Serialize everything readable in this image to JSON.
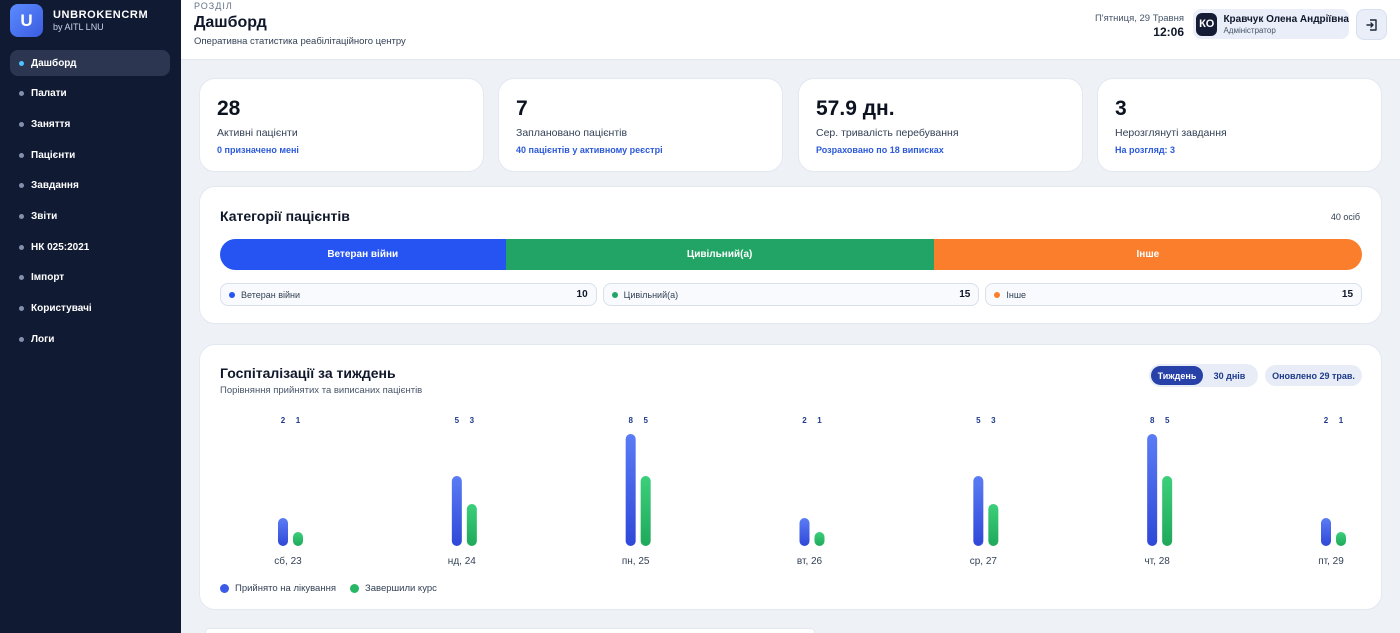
{
  "brand": {
    "letter": "U",
    "name": "UNBROKENCRM",
    "sub": "by AITL LNU"
  },
  "nav": [
    {
      "label": "Дашборд",
      "active": true
    },
    {
      "label": "Палати"
    },
    {
      "label": "Заняття"
    },
    {
      "label": "Пацієнти"
    },
    {
      "label": "Завдання"
    },
    {
      "label": "Звіти"
    },
    {
      "label": "НК 025:2021"
    },
    {
      "label": "Імпорт"
    },
    {
      "label": "Користувачі"
    },
    {
      "label": "Логи"
    }
  ],
  "header": {
    "section_label": "РОЗДІЛ",
    "title": "Дашборд",
    "subtitle": "Оперативна статистика реабілітаційного центру",
    "date": "П'ятниця, 29 Травня",
    "time": "12:06",
    "user": {
      "initials": "КО",
      "name": "Кравчук Олена Андріївна",
      "role": "Адміністратор"
    }
  },
  "kpis": [
    {
      "value": "28",
      "label": "Активні пацієнти",
      "note": "0 призначено мені"
    },
    {
      "value": "7",
      "label": "Заплановано пацієнтів",
      "note": "40 пацієнтів у активному реєстрі"
    },
    {
      "value": "57.9 дн.",
      "label": "Сер. тривалість перебування",
      "note": "Розраховано по 18 виписках"
    },
    {
      "value": "3",
      "label": "Нерозглянуті завдання",
      "note": "На розгляд: 3"
    }
  ],
  "categories": {
    "title": "Категорії пацієнтів",
    "total": "40 осіб",
    "items": [
      {
        "label": "Ветеран війни",
        "value": 10,
        "color": "#2654f2"
      },
      {
        "label": "Цивільний(а)",
        "value": 15,
        "color": "#22a466"
      },
      {
        "label": "Інше",
        "value": 15,
        "color": "#fb7e2d"
      }
    ]
  },
  "hospitalizations": {
    "title": "Госпіталізації за тиждень",
    "subtitle": "Порівняння прийнятих та виписаних пацієнтів",
    "toggle": {
      "week": "Тиждень",
      "month": "30 днів",
      "selected": "week"
    },
    "updated": "Оновлено 29 трав.",
    "legend": {
      "admitted": "Прийнято на лікування",
      "discharged": "Завершили курс"
    },
    "colors": {
      "admitted": "#3b5be8",
      "discharged": "#26b865"
    }
  },
  "chart_data": {
    "type": "bar",
    "categories": [
      "сб, 23",
      "нд, 24",
      "пн, 25",
      "вт, 26",
      "ср, 27",
      "чт, 28",
      "пт, 29"
    ],
    "series": [
      {
        "name": "Прийнято на лікування",
        "values": [
          2,
          5,
          8,
          2,
          5,
          8,
          2
        ]
      },
      {
        "name": "Завершили курс",
        "values": [
          1,
          3,
          5,
          1,
          3,
          5,
          1
        ]
      }
    ]
  }
}
